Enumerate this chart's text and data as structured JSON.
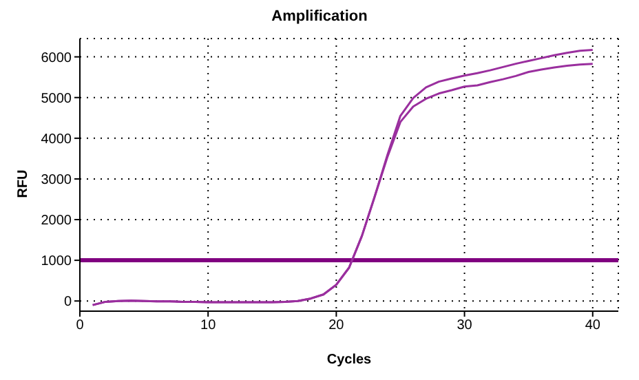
{
  "chart_data": {
    "type": "line",
    "title": "Amplification",
    "xlabel": "Cycles",
    "ylabel": "RFU",
    "x": [
      1,
      2,
      3,
      4,
      5,
      6,
      7,
      8,
      9,
      10,
      11,
      12,
      13,
      14,
      15,
      16,
      17,
      18,
      19,
      20,
      21,
      22,
      23,
      24,
      25,
      26,
      27,
      28,
      29,
      30,
      31,
      32,
      33,
      34,
      35,
      36,
      37,
      38,
      39,
      40
    ],
    "series": [
      {
        "color": "#9a2f9e",
        "values": [
          -100,
          -20,
          0,
          10,
          0,
          -10,
          -10,
          -20,
          -20,
          -30,
          -30,
          -30,
          -30,
          -30,
          -30,
          -20,
          0,
          60,
          160,
          400,
          820,
          1600,
          2570,
          3600,
          4550,
          4990,
          5250,
          5390,
          5470,
          5540,
          5600,
          5670,
          5750,
          5830,
          5900,
          5970,
          6040,
          6100,
          6150,
          6170
        ]
      },
      {
        "color": "#9a2f9e",
        "values": [
          -100,
          -20,
          0,
          10,
          0,
          -10,
          -10,
          -20,
          -20,
          -30,
          -30,
          -30,
          -30,
          -30,
          -30,
          -20,
          0,
          60,
          160,
          400,
          820,
          1600,
          2570,
          3550,
          4400,
          4780,
          4970,
          5100,
          5180,
          5270,
          5300,
          5380,
          5450,
          5530,
          5630,
          5690,
          5740,
          5780,
          5810,
          5830
        ]
      }
    ],
    "ref_lines": [
      {
        "axis": "y",
        "value": 1000,
        "color": "#800080"
      }
    ],
    "xlim": [
      0,
      42
    ],
    "xticks": [
      0,
      10,
      20,
      30,
      40
    ],
    "ylim": [
      -250,
      6450
    ],
    "yticks": [
      0,
      1000,
      2000,
      3000,
      4000,
      5000,
      6000
    ],
    "grid": true,
    "marker": "none",
    "line_style": "solid",
    "legend": false
  }
}
